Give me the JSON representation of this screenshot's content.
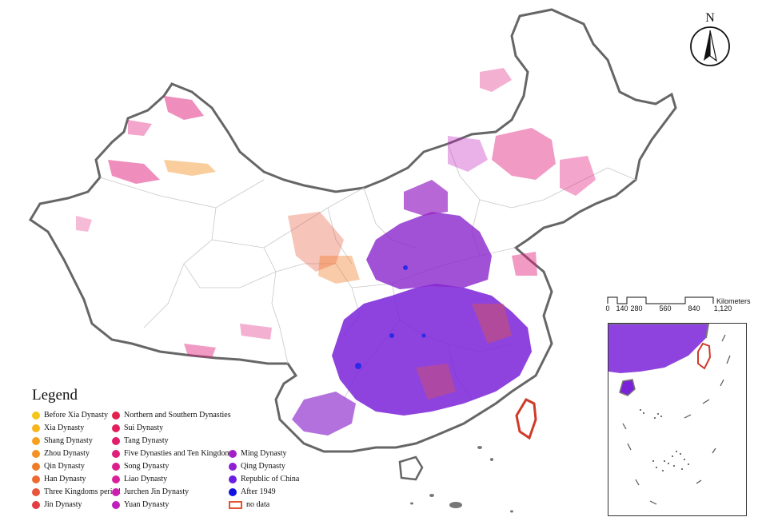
{
  "map": {
    "legend_title": "Legend",
    "legend_items": [
      {
        "label": "Before Xia Dynasty",
        "color": "#f5c518"
      },
      {
        "label": "Xia Dynasty",
        "color": "#f7b51b"
      },
      {
        "label": "Shang Dynasty",
        "color": "#f6a11f"
      },
      {
        "label": "Zhou Dynasty",
        "color": "#f39123"
      },
      {
        "label": "Qin Dynasty",
        "color": "#f07c28"
      },
      {
        "label": "Han Dynasty",
        "color": "#ec6a30"
      },
      {
        "label": "Three Kingdoms period",
        "color": "#e8553a"
      },
      {
        "label": "Jin Dynasty",
        "color": "#e33c44"
      },
      {
        "label": "Northern and Southern Dynasties",
        "color": "#e4224f"
      },
      {
        "label": "Sui Dynasty",
        "color": "#e31f5c"
      },
      {
        "label": "Tang Dynasty",
        "color": "#e11e6b"
      },
      {
        "label": "Five Dynasties and Ten Kingdoms",
        "color": "#e01e7c"
      },
      {
        "label": "Song Dynasty",
        "color": "#dd1f8c"
      },
      {
        "label": "Liao Dynasty",
        "color": "#d8209c"
      },
      {
        "label": "Jurchen Jin Dynasty",
        "color": "#cc1fae"
      },
      {
        "label": "Yuan Dynasty",
        "color": "#bf1fbd"
      },
      {
        "label": "Ming Dynasty",
        "color": "#a51fc9"
      },
      {
        "label": "Qing Dynasty",
        "color": "#8e1fd2"
      },
      {
        "label": "Republic of China",
        "color": "#6a1fe0"
      },
      {
        "label": "After 1949",
        "color": "#1010e0"
      },
      {
        "label": "no data",
        "color": "#e8532d"
      }
    ],
    "north_label": "N",
    "scale_ticks": [
      "0",
      "140",
      "280",
      "560",
      "840",
      "1,120"
    ],
    "scale_unit": "Kilometers",
    "colors": {
      "border": "#666666",
      "province_lines": "#c8c8c8",
      "nodata_outline": "#d03a2a",
      "dense_purple": "#7a22d8",
      "dense_blue": "#2a2ae8"
    }
  }
}
